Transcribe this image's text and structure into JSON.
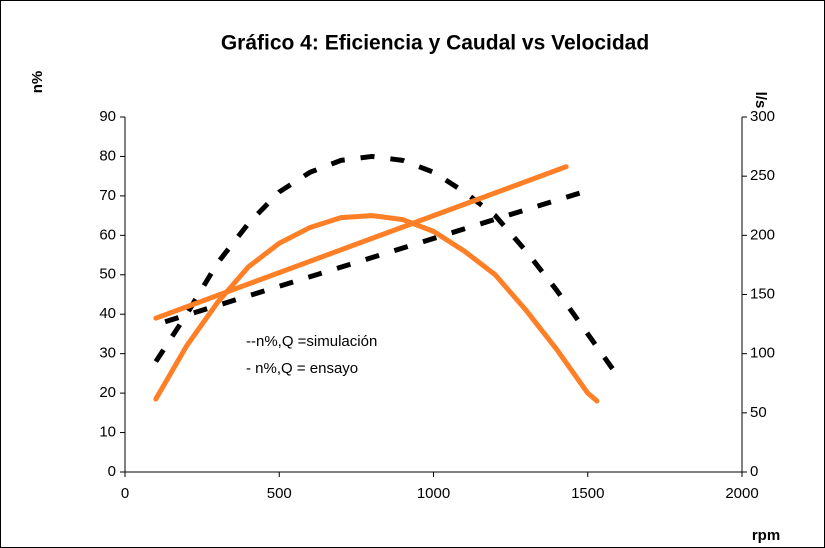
{
  "chart_data": {
    "type": "line",
    "title": "Gráfico 4: Eficiencia y Caudal vs Velocidad",
    "y_label": "n%",
    "y2_label": "l/s",
    "x_label": "rpm",
    "annotations": [
      "--n%,Q =simulación",
      "- n%,Q = ensayo"
    ],
    "xlim": [
      0,
      2000
    ],
    "xticks": [
      0,
      500,
      1000,
      1500,
      2000
    ],
    "ylim": [
      0,
      90
    ],
    "yticks": [
      0,
      10,
      20,
      30,
      40,
      50,
      60,
      70,
      80,
      90
    ],
    "y2lim": [
      0,
      300
    ],
    "y2ticks": [
      0,
      50,
      100,
      150,
      200,
      250,
      300
    ],
    "series": [
      {
        "color": "#000000",
        "dashed": true,
        "x": [
          100,
          200,
          300,
          400,
          500,
          600,
          700,
          800,
          900,
          1000,
          1100,
          1200,
          1300,
          1400,
          1500,
          1600
        ],
        "values": [
          28,
          40,
          53,
          63,
          71,
          76,
          79,
          80,
          79,
          76,
          71,
          65,
          56,
          46,
          35,
          24
        ]
      },
      {
        "color": "#000000",
        "dashed": true,
        "axis": "y2",
        "x": [
          130,
          1490
        ],
        "values": [
          127,
          237
        ]
      },
      {
        "color": "#ff7f27",
        "dashed": false,
        "x": [
          100,
          200,
          300,
          400,
          500,
          600,
          700,
          800,
          900,
          1000,
          1100,
          1200,
          1300,
          1400,
          1500,
          1530
        ],
        "values": [
          18.5,
          32,
          43,
          52,
          58,
          62,
          64.5,
          65,
          64,
          61,
          56,
          50,
          41,
          31,
          20,
          18
        ]
      },
      {
        "color": "#ff7f27",
        "dashed": false,
        "axis": "y2",
        "x": [
          100,
          1430
        ],
        "values": [
          130,
          258
        ]
      }
    ]
  }
}
